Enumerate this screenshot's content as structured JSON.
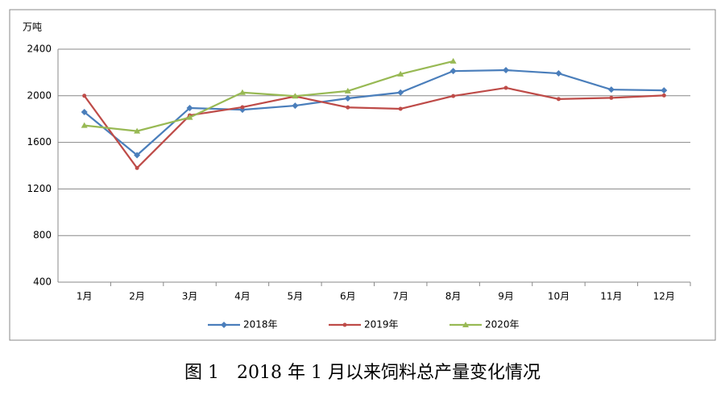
{
  "chart_data": {
    "type": "line",
    "title": "图 1　2018 年 1 月以来饲料总产量变化情况",
    "y_label": "万吨",
    "categories": [
      "1月",
      "2月",
      "3月",
      "4月",
      "5月",
      "6月",
      "7月",
      "8月",
      "9月",
      "10月",
      "11月",
      "12月"
    ],
    "series": [
      {
        "name": "2018年",
        "color": "#4a7ebb",
        "marker": "diamond",
        "values": [
          1860,
          1490,
          1895,
          1880,
          1915,
          1978,
          2028,
          2212,
          2220,
          2192,
          2053,
          2046
        ]
      },
      {
        "name": "2019年",
        "color": "#be4b48",
        "marker": "circle",
        "values": [
          2000,
          1380,
          1832,
          1902,
          1995,
          1900,
          1888,
          1998,
          2068,
          1972,
          1982,
          2003
        ]
      },
      {
        "name": "2020年",
        "color": "#98b954",
        "marker": "triangle",
        "values": [
          1745,
          1697,
          1814,
          2028,
          1997,
          2041,
          2186,
          2297,
          null,
          null,
          null,
          null
        ]
      }
    ],
    "ylim": [
      400,
      2400
    ],
    "yticks": [
      400,
      800,
      1200,
      1600,
      2000,
      2400
    ],
    "grid": true,
    "legend": "bottom"
  }
}
